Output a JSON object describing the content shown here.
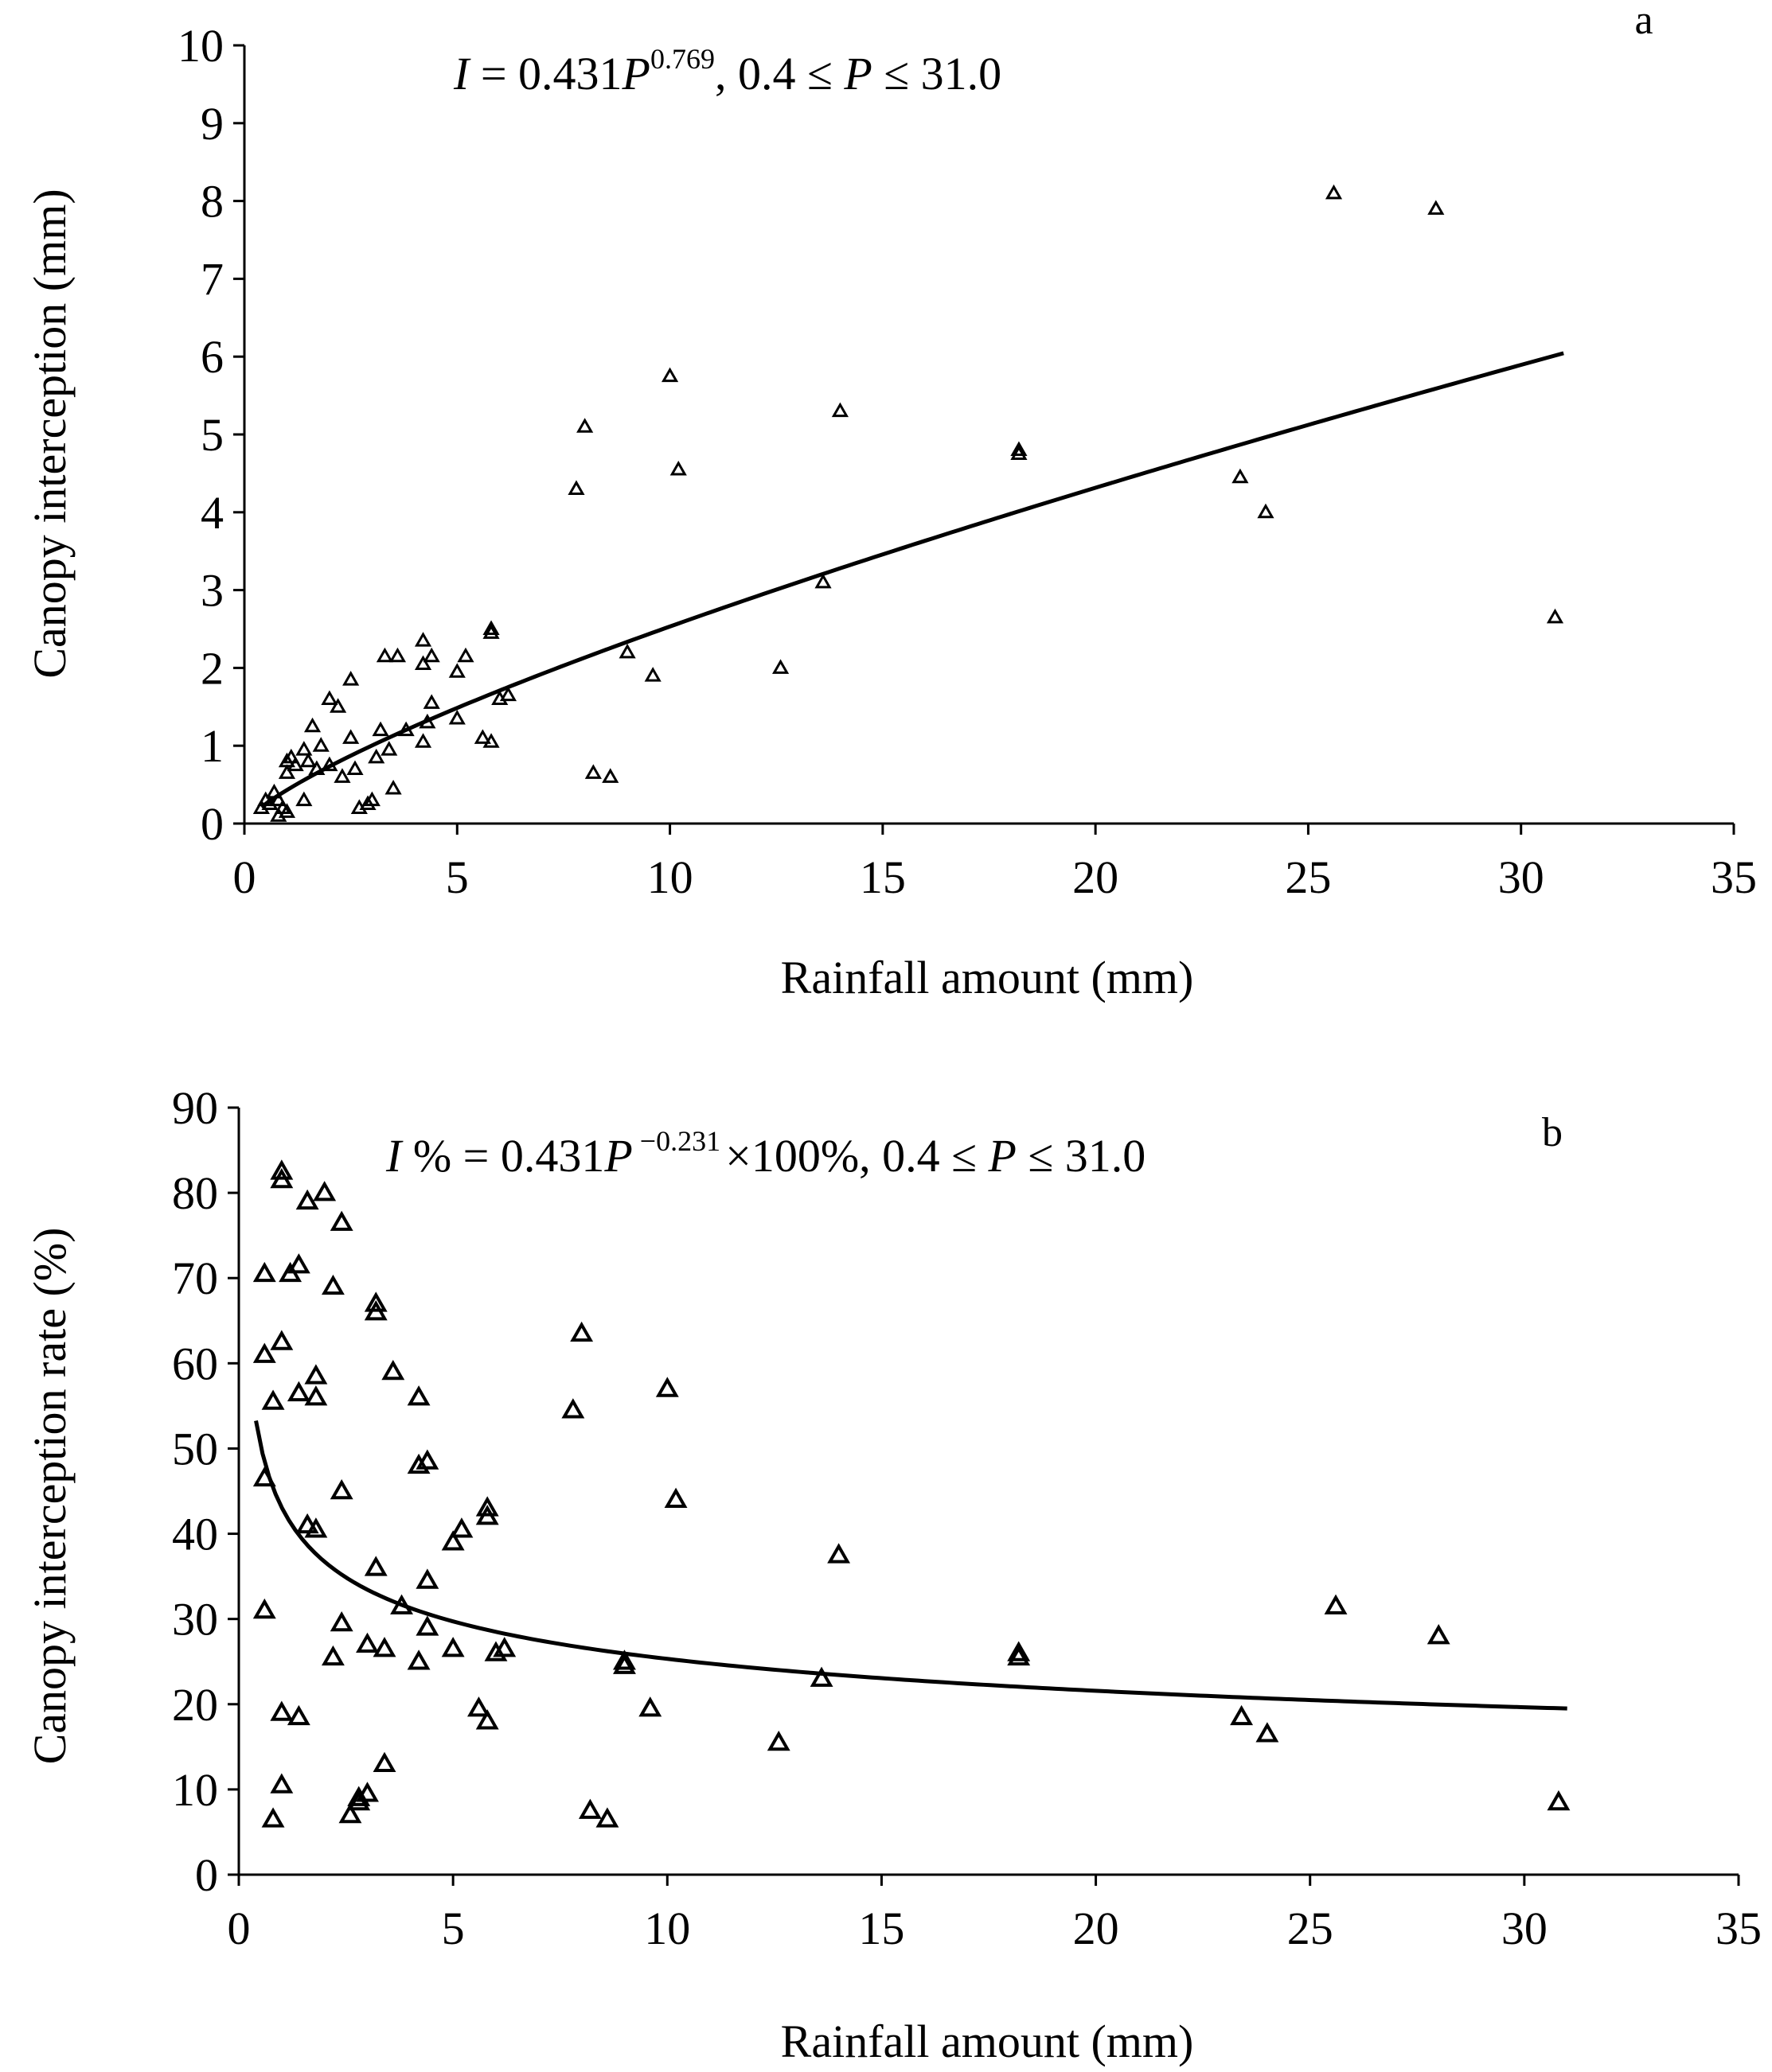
{
  "chart_data": [
    {
      "type": "scatter",
      "panel": "a",
      "xlabel": "Rainfall amount (mm)",
      "ylabel": "Canopy interception (mm)",
      "xlim": [
        0,
        35
      ],
      "ylim": [
        0,
        10
      ],
      "xticks": [
        "0",
        "5",
        "10",
        "15",
        "20",
        "25",
        "30",
        "35"
      ],
      "yticks": [
        "0",
        "1",
        "2",
        "3",
        "4",
        "5",
        "6",
        "7",
        "8",
        "9",
        "10"
      ],
      "equation": {
        "lhs": "I",
        "eq": " = 0.431",
        "var": "P",
        "exp": "0.769",
        "cond": ", 0.4 ≤ ",
        "var2": "P",
        "cond2": " ≤ 31.0"
      },
      "fit": {
        "a": 0.431,
        "b": 0.769,
        "xmin": 0.4,
        "xmax": 31.0
      },
      "points": [
        [
          0.4,
          0.2
        ],
        [
          0.5,
          0.3
        ],
        [
          0.6,
          0.25
        ],
        [
          0.7,
          0.4
        ],
        [
          0.8,
          0.3
        ],
        [
          0.8,
          0.1
        ],
        [
          0.9,
          0.2
        ],
        [
          1.0,
          0.15
        ],
        [
          1.0,
          0.65
        ],
        [
          1.0,
          0.8
        ],
        [
          1.1,
          0.85
        ],
        [
          1.2,
          0.75
        ],
        [
          1.4,
          0.3
        ],
        [
          1.4,
          0.95
        ],
        [
          1.5,
          0.8
        ],
        [
          1.6,
          1.25
        ],
        [
          1.7,
          0.7
        ],
        [
          1.8,
          1.0
        ],
        [
          2.0,
          0.75
        ],
        [
          2.0,
          1.6
        ],
        [
          2.2,
          1.5
        ],
        [
          2.3,
          0.6
        ],
        [
          2.5,
          1.1
        ],
        [
          2.5,
          1.85
        ],
        [
          2.6,
          0.7
        ],
        [
          2.7,
          0.2
        ],
        [
          2.9,
          0.25
        ],
        [
          3.0,
          0.3
        ],
        [
          3.1,
          0.85
        ],
        [
          3.2,
          1.2
        ],
        [
          3.3,
          2.15
        ],
        [
          3.4,
          0.95
        ],
        [
          3.5,
          0.45
        ],
        [
          3.6,
          2.15
        ],
        [
          3.8,
          1.2
        ],
        [
          4.2,
          1.05
        ],
        [
          4.2,
          2.05
        ],
        [
          4.2,
          2.35
        ],
        [
          4.3,
          1.3
        ],
        [
          4.4,
          1.55
        ],
        [
          4.4,
          2.15
        ],
        [
          5.0,
          1.35
        ],
        [
          5.0,
          1.95
        ],
        [
          5.2,
          2.15
        ],
        [
          5.6,
          1.1
        ],
        [
          5.8,
          1.05
        ],
        [
          5.8,
          2.45
        ],
        [
          5.8,
          2.5
        ],
        [
          6.0,
          1.6
        ],
        [
          6.2,
          1.65
        ],
        [
          7.8,
          4.3
        ],
        [
          8.0,
          5.1
        ],
        [
          8.2,
          0.65
        ],
        [
          8.6,
          0.6
        ],
        [
          9.0,
          2.2
        ],
        [
          9.6,
          1.9
        ],
        [
          10.0,
          5.75
        ],
        [
          10.2,
          4.55
        ],
        [
          12.6,
          2.0
        ],
        [
          13.6,
          3.1
        ],
        [
          14.0,
          5.3
        ],
        [
          18.2,
          4.75
        ],
        [
          18.2,
          4.8
        ],
        [
          23.4,
          4.45
        ],
        [
          24.0,
          4.0
        ],
        [
          25.6,
          8.1
        ],
        [
          28.0,
          7.9
        ],
        [
          30.8,
          2.65
        ]
      ]
    },
    {
      "type": "scatter",
      "panel": "b",
      "xlabel": "Rainfall amount (mm)",
      "ylabel": "Canopy interception rate (%)",
      "xlim": [
        0,
        35
      ],
      "ylim": [
        0,
        90
      ],
      "xticks": [
        "0",
        "5",
        "10",
        "15",
        "20",
        "25",
        "30",
        "35"
      ],
      "yticks": [
        "0",
        "10",
        "20",
        "30",
        "40",
        "50",
        "60",
        "70",
        "80",
        "90"
      ],
      "equation": {
        "lhs": "I",
        "pct": " % = 0.431",
        "var": "P",
        "exp": " −0.231",
        "mul": "×",
        "rest": "100%, 0.4 ≤ ",
        "var2": "P",
        "cond2": " ≤ 31.0"
      },
      "fit": {
        "a": 0.431,
        "b": -0.231,
        "scale": 100,
        "xmin": 0.4,
        "xmax": 31.0
      },
      "points": [
        [
          0.6,
          46.5
        ],
        [
          0.6,
          61
        ],
        [
          0.6,
          70.5
        ],
        [
          0.6,
          31
        ],
        [
          0.8,
          55.5
        ],
        [
          0.8,
          6.5
        ],
        [
          1.0,
          82.5
        ],
        [
          1.0,
          81.5
        ],
        [
          1.0,
          62.5
        ],
        [
          1.0,
          19
        ],
        [
          1.0,
          10.5
        ],
        [
          1.2,
          70.5
        ],
        [
          1.4,
          71.5
        ],
        [
          1.4,
          56.5
        ],
        [
          1.4,
          18.5
        ],
        [
          1.6,
          79
        ],
        [
          1.6,
          41
        ],
        [
          1.8,
          58.5
        ],
        [
          1.8,
          56
        ],
        [
          1.8,
          40.5
        ],
        [
          2.0,
          80
        ],
        [
          2.2,
          69
        ],
        [
          2.2,
          25.5
        ],
        [
          2.4,
          76.5
        ],
        [
          2.4,
          45
        ],
        [
          2.4,
          29.5
        ],
        [
          2.6,
          7
        ],
        [
          2.8,
          9
        ],
        [
          2.8,
          8.5
        ],
        [
          3.0,
          27
        ],
        [
          3.0,
          9.5
        ],
        [
          3.2,
          67
        ],
        [
          3.2,
          66
        ],
        [
          3.2,
          36
        ],
        [
          3.4,
          26.5
        ],
        [
          3.4,
          13
        ],
        [
          3.6,
          59
        ],
        [
          3.8,
          31.5
        ],
        [
          4.2,
          56
        ],
        [
          4.2,
          48
        ],
        [
          4.2,
          25
        ],
        [
          4.4,
          48.5
        ],
        [
          4.4,
          34.5
        ],
        [
          4.4,
          29
        ],
        [
          5.0,
          39
        ],
        [
          5.0,
          26.5
        ],
        [
          5.2,
          40.5
        ],
        [
          5.6,
          19.5
        ],
        [
          5.8,
          43
        ],
        [
          5.8,
          42
        ],
        [
          5.8,
          18
        ],
        [
          6.0,
          26
        ],
        [
          6.2,
          26.5
        ],
        [
          7.8,
          54.5
        ],
        [
          8.0,
          63.5
        ],
        [
          8.2,
          7.5
        ],
        [
          8.6,
          6.5
        ],
        [
          9.0,
          24.5
        ],
        [
          9.0,
          25
        ],
        [
          9.6,
          19.5
        ],
        [
          10.0,
          57
        ],
        [
          10.2,
          44
        ],
        [
          12.6,
          15.5
        ],
        [
          13.6,
          23
        ],
        [
          14.0,
          37.5
        ],
        [
          18.2,
          25.5
        ],
        [
          18.2,
          26
        ],
        [
          23.4,
          18.5
        ],
        [
          24.0,
          16.5
        ],
        [
          25.6,
          31.5
        ],
        [
          28.0,
          28
        ],
        [
          30.8,
          8.5
        ]
      ]
    }
  ]
}
